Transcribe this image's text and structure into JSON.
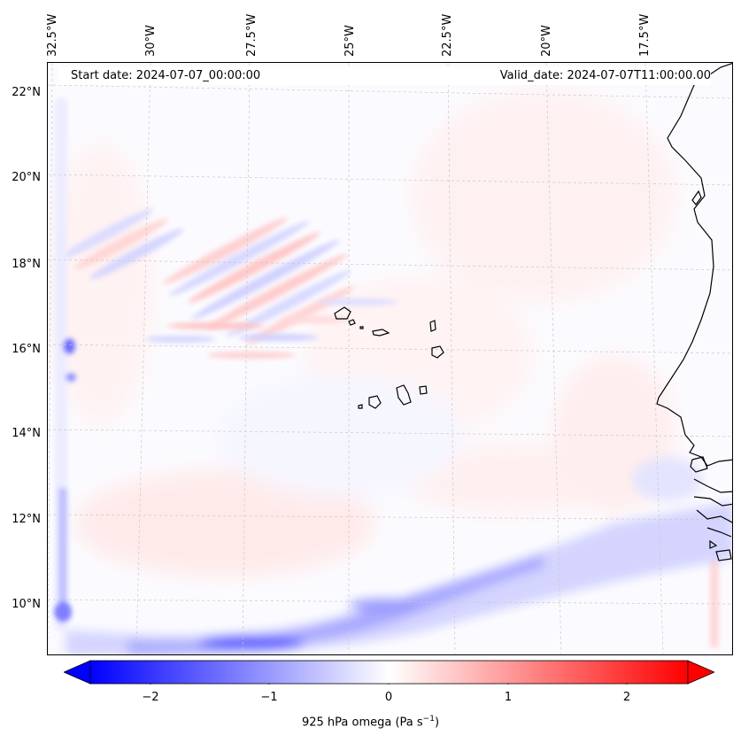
{
  "map": {
    "start_label": "Start date: 2024-07-07_00:00:00",
    "valid_label": "Valid_date: 2024-07-07T11:00:00.00",
    "lon_labels": [
      "32.5°W",
      "30°W",
      "27.5°W",
      "25°W",
      "22.5°W",
      "20°W",
      "17.5°W"
    ],
    "lat_labels": [
      "22°N",
      "20°N",
      "18°N",
      "16°N",
      "14°N",
      "12°N",
      "10°N"
    ],
    "field_colormap": "bwr",
    "colors": {
      "negative": "#0000ff",
      "neutral": "#ffffff",
      "positive": "#ff0000",
      "coastline": "#000000"
    }
  },
  "colorbar": {
    "ticks": [
      "−2",
      "−1",
      "0",
      "1",
      "2"
    ],
    "range": [
      -2.7,
      2.7
    ],
    "extend": "both",
    "label_main": "925 hPa omega (Pa s",
    "label_exp": "−1",
    "label_close": ")"
  }
}
